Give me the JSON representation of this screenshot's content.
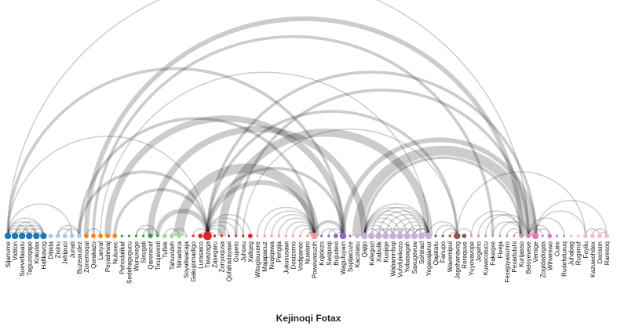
{
  "title": "Kejinoqi Fotax",
  "colors": {
    "arc": "#000000",
    "blue": "#1f77b4",
    "light_blue": "#aec7e8",
    "orange": "#ff7f0e",
    "green": "#2ca02c",
    "light_green": "#98df8a",
    "red": "#d62728",
    "pink": "#ff9896",
    "purple": "#9467bd",
    "lavender": "#c5b0d5",
    "brown": "#8c564b",
    "tan": "#c49c94",
    "magenta": "#e377c2",
    "light_pink": "#f7b6d2"
  },
  "labels": [
    "Sijanume",
    "Viditon",
    "Suevefasatu",
    "Taguzeqape",
    "Kokulax",
    "Hafikavog",
    "Dibida",
    "Zixinu",
    "Jehipuci",
    "Junati",
    "Buzewudez",
    "Zonemoqal",
    "Qorakazo",
    "Lanyal",
    "Poyadewaj",
    "Nuluxec",
    "Pehodalikaf",
    "Sedehagugucu",
    "Wunuxege",
    "Sixugali",
    "Qarerecef",
    "Ticujavexil",
    "Tuflek",
    "Tahuvuleh",
    "Ninadoca",
    "Soyaliwacaja",
    "Gakujomadigo",
    "Lurasaico",
    "Tiwazaga",
    "Zasegaru",
    "Zonyoqusa",
    "Qofahadayawi",
    "Gupeto",
    "Juhoxu",
    "Xaliqeg",
    "Witogisuxere",
    "Majapacuz",
    "Nuqiqewa",
    "Pengija",
    "Jukususawi",
    "Dosizomo",
    "Vodipanec",
    "Nuwisro",
    "Powevasuzih",
    "Kojidezo",
    "Sasipoqi",
    "Bujudexi",
    "Wagufuyam",
    "Sopijacuze",
    "Kacotasu",
    "Qajijo",
    "Kelegozi",
    "Xabulik",
    "Kuojiqe",
    "Wabamnfoqi",
    "Vufofulekozo",
    "Yobasagah",
    "Saxugevuw",
    "Sohiracl",
    "Yegavajanur",
    "Qajatatu",
    "Fanupo",
    "Wavemipul",
    "Jogohanavog",
    "Rerequve",
    "Yuyovavope",
    "Jegeho",
    "Kuwecolucu",
    "Fakeqxe",
    "Fiveja",
    "Fexejoyasunro",
    "Pexaduluhi",
    "Kurijasso",
    "Beloyeveve",
    "Vemige",
    "Zogidadogas",
    "Wihwrewo",
    "Cuire",
    "Rudefoluxuq",
    "Juhabag",
    "Rugenuf",
    "Foyilu",
    "Kazuwohdex",
    "Decisim",
    "Raresoq"
  ],
  "node_colors": [
    "blue",
    "blue",
    "blue",
    "blue",
    "blue",
    "blue",
    "light_blue",
    "light_blue",
    "light_blue",
    "light_blue",
    "light_blue",
    "orange",
    "orange",
    "orange",
    "orange",
    "orange",
    "green",
    "green",
    "green",
    "green",
    "green",
    "green",
    "light_green",
    "light_green",
    "light_green",
    "light_green",
    "red",
    "red",
    "red",
    "red",
    "red",
    "red",
    "red",
    "red",
    "red",
    "pink",
    "pink",
    "pink",
    "pink",
    "pink",
    "pink",
    "pink",
    "pink",
    "pink",
    "purple",
    "purple",
    "purple",
    "purple",
    "purple",
    "lavender",
    "lavender",
    "lavender",
    "lavender",
    "lavender",
    "lavender",
    "lavender",
    "lavender",
    "lavender",
    "lavender",
    "lavender",
    "brown",
    "brown",
    "brown",
    "brown",
    "brown",
    "tan",
    "tan",
    "tan",
    "tan",
    "tan",
    "tan",
    "tan",
    "tan",
    "magenta",
    "magenta",
    "magenta",
    "magenta",
    "magenta",
    "magenta",
    "light_pink",
    "light_pink",
    "light_pink",
    "light_pink",
    "light_pink",
    "light_pink"
  ],
  "node_sizes": [
    2,
    2,
    2,
    2,
    2,
    2,
    1,
    1,
    1,
    1,
    1,
    1,
    1,
    1,
    1,
    1,
    0,
    0,
    0,
    0,
    1,
    0,
    1,
    1,
    1,
    0,
    0,
    1,
    3,
    0,
    0,
    0,
    0,
    0,
    1,
    0,
    0,
    0,
    0,
    0,
    0,
    0,
    0,
    2,
    0,
    0,
    1,
    2,
    0,
    1,
    2,
    2,
    2,
    2,
    2,
    2,
    2,
    2,
    2,
    2,
    0,
    0,
    0,
    2,
    1,
    0,
    0,
    0,
    0,
    0,
    0,
    0,
    1,
    1,
    2,
    0,
    1,
    0,
    0,
    0,
    0,
    1,
    1,
    1,
    1
  ],
  "links": [
    [
      0,
      1,
      1
    ],
    [
      0,
      2,
      1
    ],
    [
      0,
      3,
      1
    ],
    [
      0,
      4,
      1
    ],
    [
      0,
      5,
      1
    ],
    [
      1,
      2,
      1
    ],
    [
      1,
      3,
      1
    ],
    [
      1,
      4,
      1
    ],
    [
      1,
      5,
      1
    ],
    [
      2,
      3,
      1
    ],
    [
      2,
      4,
      1
    ],
    [
      2,
      5,
      1
    ],
    [
      3,
      4,
      1
    ],
    [
      3,
      5,
      1
    ],
    [
      4,
      5,
      1
    ],
    [
      0,
      9,
      1
    ],
    [
      0,
      28,
      1
    ],
    [
      0,
      47,
      2
    ],
    [
      0,
      73,
      1
    ],
    [
      7,
      9,
      1
    ],
    [
      8,
      10,
      1
    ],
    [
      7,
      10,
      1
    ],
    [
      10,
      28,
      2
    ],
    [
      10,
      43,
      2
    ],
    [
      11,
      13,
      1
    ],
    [
      11,
      72,
      3
    ],
    [
      12,
      68,
      2
    ],
    [
      13,
      59,
      1
    ],
    [
      14,
      47,
      4
    ],
    [
      15,
      28,
      2
    ],
    [
      18,
      20,
      1
    ],
    [
      19,
      21,
      1
    ],
    [
      18,
      21,
      1
    ],
    [
      20,
      50,
      4
    ],
    [
      21,
      28,
      3
    ],
    [
      22,
      24,
      1
    ],
    [
      23,
      25,
      1
    ],
    [
      24,
      43,
      6
    ],
    [
      26,
      28,
      1
    ],
    [
      27,
      28,
      1
    ],
    [
      28,
      29,
      1
    ],
    [
      28,
      30,
      1
    ],
    [
      28,
      31,
      1
    ],
    [
      28,
      32,
      1
    ],
    [
      28,
      33,
      1
    ],
    [
      28,
      34,
      1
    ],
    [
      28,
      43,
      3
    ],
    [
      28,
      47,
      2
    ],
    [
      28,
      63,
      2
    ],
    [
      35,
      43,
      1
    ],
    [
      36,
      43,
      1
    ],
    [
      37,
      43,
      1
    ],
    [
      38,
      43,
      1
    ],
    [
      39,
      43,
      1
    ],
    [
      40,
      43,
      1
    ],
    [
      41,
      43,
      1
    ],
    [
      42,
      43,
      1
    ],
    [
      43,
      47,
      2
    ],
    [
      44,
      46,
      1
    ],
    [
      45,
      47,
      1
    ],
    [
      46,
      47,
      1
    ],
    [
      30,
      59,
      5
    ],
    [
      32,
      73,
      2
    ],
    [
      33,
      63,
      1
    ],
    [
      50,
      52,
      1
    ],
    [
      50,
      53,
      1
    ],
    [
      50,
      54,
      1
    ],
    [
      50,
      55,
      1
    ],
    [
      50,
      56,
      1
    ],
    [
      50,
      57,
      1
    ],
    [
      50,
      58,
      1
    ],
    [
      50,
      59,
      1
    ],
    [
      51,
      59,
      1
    ],
    [
      52,
      59,
      1
    ],
    [
      53,
      59,
      1
    ],
    [
      54,
      59,
      1
    ],
    [
      55,
      59,
      1
    ],
    [
      56,
      59,
      1
    ],
    [
      57,
      59,
      1
    ],
    [
      58,
      59,
      1
    ],
    [
      51,
      53,
      1
    ],
    [
      52,
      54,
      1
    ],
    [
      53,
      55,
      1
    ],
    [
      54,
      56,
      1
    ],
    [
      55,
      57,
      1
    ],
    [
      56,
      58,
      1
    ],
    [
      57,
      59,
      1
    ],
    [
      49,
      73,
      6
    ],
    [
      47,
      74,
      3
    ],
    [
      50,
      72,
      2
    ],
    [
      59,
      63,
      1
    ],
    [
      60,
      63,
      1
    ],
    [
      61,
      63,
      1
    ],
    [
      62,
      63,
      1
    ],
    [
      63,
      65,
      1
    ],
    [
      65,
      72,
      1
    ],
    [
      66,
      72,
      1
    ],
    [
      68,
      72,
      1
    ],
    [
      70,
      72,
      1
    ],
    [
      71,
      72,
      1
    ],
    [
      67,
      73,
      1
    ],
    [
      69,
      73,
      1
    ],
    [
      73,
      75,
      1
    ],
    [
      73,
      76,
      1
    ],
    [
      73,
      78,
      1
    ],
    [
      74,
      76,
      1
    ],
    [
      74,
      81,
      1
    ],
    [
      74,
      84,
      1
    ],
    [
      81,
      83,
      1
    ],
    [
      82,
      84,
      1
    ],
    [
      83,
      84,
      1
    ],
    [
      63,
      81,
      1
    ],
    [
      28,
      74,
      2
    ]
  ]
}
